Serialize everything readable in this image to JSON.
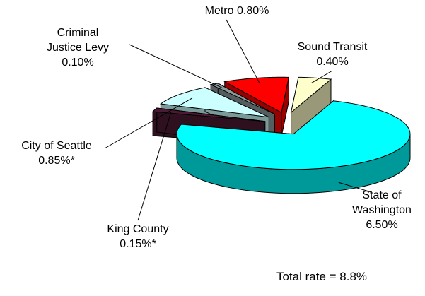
{
  "chart_data": {
    "type": "pie3d",
    "categories": [
      "State of Washington",
      "King County",
      "City of Seattle",
      "Criminal Justice Levy",
      "Metro",
      "Sound Transit"
    ],
    "values": [
      6.5,
      0.15,
      0.85,
      0.1,
      0.8,
      0.4
    ],
    "value_labels": [
      "6.50%",
      "0.15%*",
      "0.85%*",
      "0.10%",
      "0.80%",
      "0.40%"
    ],
    "colors": [
      "#00ffff",
      "#4d1a33",
      "#ccffff",
      "#8c9c9c",
      "#ff0000",
      "#ffffcc"
    ],
    "annotation": "Total rate = 8.8%"
  }
}
